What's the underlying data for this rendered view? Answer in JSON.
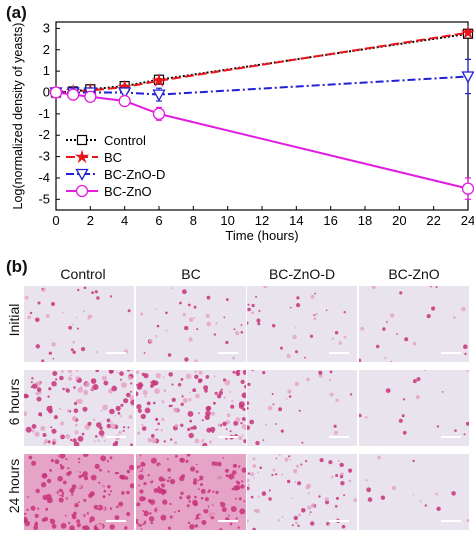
{
  "panel_a_label": "(a)",
  "panel_b_label": "(b)",
  "chart_data": {
    "type": "line",
    "xlabel": "Time (hours)",
    "ylabel": "Log(normalized density of yeasts)",
    "xlim": [
      0,
      24
    ],
    "ylim": [
      -5.5,
      3.3
    ],
    "x_ticks": [
      0,
      2,
      4,
      6,
      8,
      10,
      12,
      14,
      16,
      18,
      20,
      22,
      24
    ],
    "y_ticks": [
      -5,
      -4,
      -3,
      -2,
      -1,
      0,
      1,
      2,
      3
    ],
    "grid": false,
    "legend_position": "bottom-left",
    "series": [
      {
        "name": "Control",
        "color": "#000000",
        "dash": "2,2",
        "marker": "square",
        "fill_marker": false,
        "x": [
          0,
          1,
          2,
          4,
          6,
          24
        ],
        "y": [
          0.0,
          0.05,
          0.15,
          0.3,
          0.6,
          2.75
        ],
        "err": [
          0.1,
          0.15,
          0.15,
          0.15,
          0.15,
          0.1
        ]
      },
      {
        "name": "BC",
        "color": "#e8161b",
        "dash": "9,4",
        "marker": "star",
        "fill_marker": true,
        "x": [
          0,
          1,
          2,
          4,
          6,
          24
        ],
        "y": [
          0.0,
          0.05,
          0.1,
          0.25,
          0.55,
          2.8
        ],
        "err": [
          0.1,
          0.1,
          0.1,
          0.1,
          0.1,
          0.1
        ]
      },
      {
        "name": "BC-ZnO-D",
        "color": "#1f1fd8",
        "dash": "8,3,2,3",
        "marker": "triangle-down",
        "fill_marker": false,
        "x": [
          0,
          1,
          2,
          4,
          6,
          24
        ],
        "y": [
          0.0,
          0.0,
          0.0,
          0.0,
          -0.1,
          0.75
        ],
        "err": [
          0.1,
          0.1,
          0.15,
          0.2,
          0.3,
          0.8
        ]
      },
      {
        "name": "BC-ZnO",
        "color": "#e21be0",
        "dash": "",
        "marker": "circle",
        "fill_marker": false,
        "x": [
          0,
          1,
          2,
          4,
          6,
          24
        ],
        "y": [
          0.0,
          -0.1,
          -0.2,
          -0.4,
          -1.0,
          -4.5
        ],
        "err": [
          0.1,
          0.15,
          0.15,
          0.15,
          0.3,
          0.5
        ]
      }
    ]
  },
  "micrographs": {
    "columns": [
      "Control",
      "BC",
      "BC-ZnO-D",
      "BC-ZnO"
    ],
    "rows": [
      "Initial",
      "6 hours",
      "24 hours"
    ],
    "density": [
      [
        0.12,
        0.12,
        0.1,
        0.05
      ],
      [
        0.6,
        0.6,
        0.1,
        0.03
      ],
      [
        0.95,
        0.9,
        0.3,
        0.02
      ]
    ],
    "colors": {
      "background": "#e8e3ed",
      "stain": "#c8327a",
      "stain_light": "#e5a3c6"
    }
  }
}
